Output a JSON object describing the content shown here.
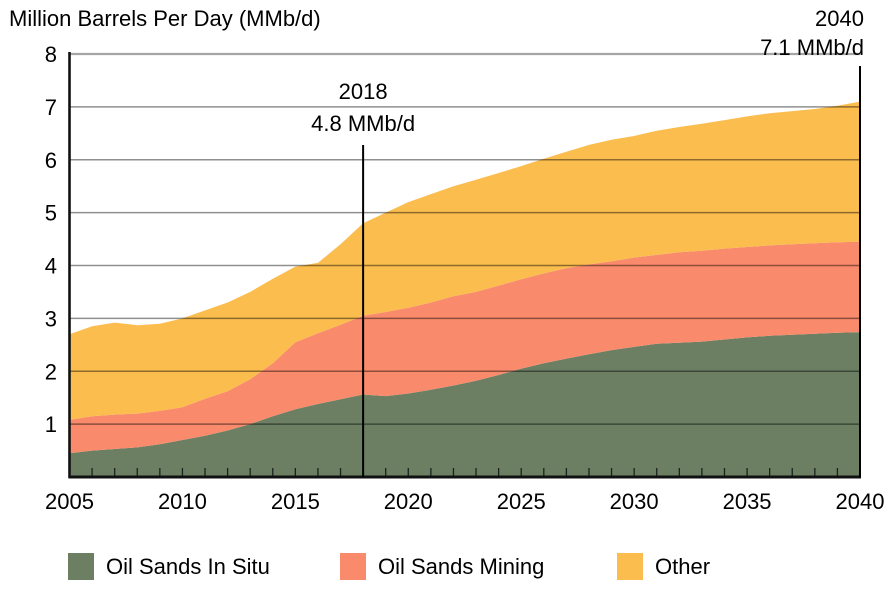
{
  "chart_data": {
    "type": "area",
    "stacked": true,
    "title": "Million Barrels Per Day (MMb/d)",
    "xlabel": "",
    "ylabel": "Million Barrels Per Day (MMb/d)",
    "x": [
      2005,
      2006,
      2007,
      2008,
      2009,
      2010,
      2011,
      2012,
      2013,
      2014,
      2015,
      2016,
      2017,
      2018,
      2019,
      2020,
      2021,
      2022,
      2023,
      2024,
      2025,
      2026,
      2027,
      2028,
      2029,
      2030,
      2031,
      2032,
      2033,
      2034,
      2035,
      2036,
      2037,
      2038,
      2039,
      2040
    ],
    "series": [
      {
        "name": "Oil Sands In Situ",
        "color": "#6C7F63",
        "values": [
          0.45,
          0.5,
          0.53,
          0.56,
          0.62,
          0.7,
          0.78,
          0.88,
          1.0,
          1.15,
          1.28,
          1.38,
          1.47,
          1.56,
          1.53,
          1.58,
          1.65,
          1.73,
          1.82,
          1.93,
          2.05,
          2.15,
          2.24,
          2.32,
          2.4,
          2.46,
          2.52,
          2.54,
          2.56,
          2.6,
          2.64,
          2.67,
          2.69,
          2.71,
          2.73,
          2.74
        ]
      },
      {
        "name": "Oil Sands Mining",
        "color": "#F98A6B",
        "values": [
          0.63,
          0.65,
          0.65,
          0.64,
          0.63,
          0.62,
          0.7,
          0.74,
          0.85,
          1.0,
          1.27,
          1.34,
          1.41,
          1.49,
          1.59,
          1.62,
          1.65,
          1.69,
          1.68,
          1.69,
          1.69,
          1.7,
          1.71,
          1.7,
          1.68,
          1.69,
          1.68,
          1.71,
          1.72,
          1.72,
          1.71,
          1.71,
          1.71,
          1.71,
          1.71,
          1.71
        ]
      },
      {
        "name": "Other",
        "color": "#FBBD4E",
        "values": [
          1.62,
          1.7,
          1.74,
          1.67,
          1.65,
          1.68,
          1.67,
          1.68,
          1.65,
          1.6,
          1.43,
          1.33,
          1.52,
          1.75,
          1.88,
          2.0,
          2.05,
          2.08,
          2.12,
          2.13,
          2.14,
          2.17,
          2.2,
          2.26,
          2.3,
          2.3,
          2.35,
          2.37,
          2.4,
          2.43,
          2.47,
          2.5,
          2.52,
          2.54,
          2.58,
          2.65
        ]
      }
    ],
    "ylim": [
      0,
      8
    ],
    "y_ticks": [
      1,
      2,
      3,
      4,
      5,
      6,
      7,
      8
    ],
    "x_ticks": [
      2005,
      2010,
      2015,
      2020,
      2025,
      2030,
      2035,
      2040
    ],
    "grid": "horizontal",
    "legend_position": "bottom",
    "annotations": [
      {
        "year": 2018,
        "line1": "2018",
        "line2": "4.8 MMb/d",
        "value": 4.8
      },
      {
        "year": 2040,
        "line1": "2040",
        "line2": "7.1 MMb/d",
        "value": 7.1
      }
    ],
    "colors": {
      "gridline": "rgba(0,0,0,0.44)",
      "top_border": "#A5A5A5",
      "axis": "#111111",
      "annotation_line": "#000000",
      "text": "#000000"
    }
  }
}
